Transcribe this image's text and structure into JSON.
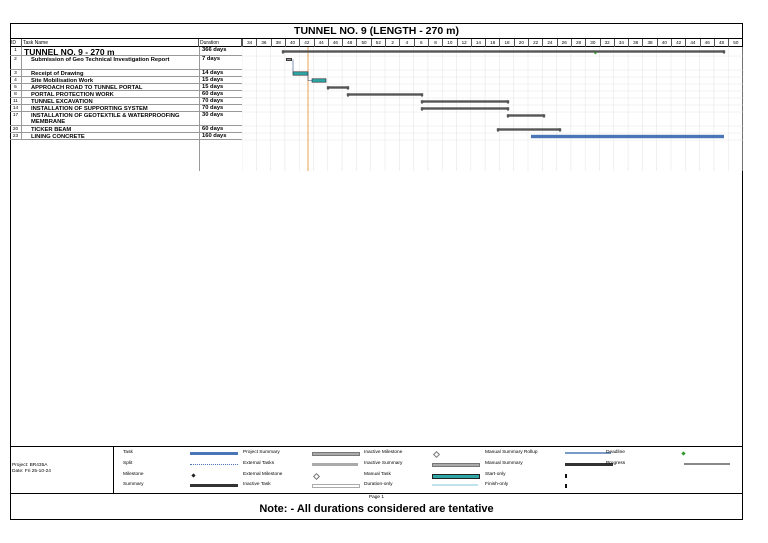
{
  "title": "TUNNEL NO. 9 (LENGTH - 270 m)",
  "columns": {
    "id": "ID",
    "task_name": "Task Name",
    "duration": "Duration"
  },
  "timescale": [
    "34",
    "36",
    "38",
    "40",
    "42",
    "44",
    "46",
    "48",
    "50",
    "52",
    "2",
    "4",
    "6",
    "8",
    "10",
    "12",
    "14",
    "16",
    "18",
    "20",
    "22",
    "24",
    "26",
    "28",
    "30",
    "32",
    "34",
    "36",
    "38",
    "40",
    "42",
    "44",
    "46",
    "48",
    "50"
  ],
  "tasks": [
    {
      "id": "1",
      "name": "TUNNEL NO. 9 - 270 m",
      "duration": "366 days",
      "level": 0
    },
    {
      "id": "2",
      "name": "Submission of Geo Technical Investigation Report",
      "duration": "7 days",
      "level": 1
    },
    {
      "id": "3",
      "name": "Receipt of Drawing",
      "duration": "14 days",
      "level": 1
    },
    {
      "id": "4",
      "name": "Site Mobilisation Work",
      "duration": "15 days",
      "level": 1
    },
    {
      "id": "5",
      "name": "APPROACH ROAD TO TUNNEL PORTAL",
      "duration": "15 days",
      "level": 1
    },
    {
      "id": "8",
      "name": "PORTAL PROTECTION WORK",
      "duration": "60 days",
      "level": 1
    },
    {
      "id": "11",
      "name": "TUNNEL EXCAVATION",
      "duration": "70 days",
      "level": 1
    },
    {
      "id": "14",
      "name": "INSTALLATION OF SUPPORTING SYSTEM",
      "duration": "70 days",
      "level": 1
    },
    {
      "id": "17",
      "name": "INSTALLATION OF GEOTEXTILE & WATERPROOFING MEMBRANE",
      "duration": "30 days",
      "level": 1
    },
    {
      "id": "20",
      "name": "TICKER BEAM",
      "duration": "60 days",
      "level": 1
    },
    {
      "id": "23",
      "name": "LINING CONCRETE",
      "duration": "160 days",
      "level": 1
    }
  ],
  "legend": {
    "project": "Project: BR435A",
    "date": "Date: Fri 25-10-24",
    "items": [
      {
        "label": "Task"
      },
      {
        "label": "Split"
      },
      {
        "label": "Milestone"
      },
      {
        "label": "Summary"
      },
      {
        "label": "Project Summary"
      },
      {
        "label": "External Tasks"
      },
      {
        "label": "External Milestone"
      },
      {
        "label": "Inactive Task"
      },
      {
        "label": "Inactive Milestone"
      },
      {
        "label": "Inactive Summary"
      },
      {
        "label": "Manual Task"
      },
      {
        "label": "Duration-only"
      },
      {
        "label": "Manual Summary Rollup"
      },
      {
        "label": "Manual Summary"
      },
      {
        "label": "Start-only"
      },
      {
        "label": "Finish-only"
      },
      {
        "label": "Deadline"
      },
      {
        "label": "Progress"
      }
    ]
  },
  "page": "Page 1",
  "note": "Note: - All durations considered are tentative",
  "colors": {
    "task": "#4a76b8",
    "manual_task": "#2fa6a6",
    "summary": "#555555",
    "today_line": "#e8a050",
    "deadline": "#2a9a2a"
  }
}
